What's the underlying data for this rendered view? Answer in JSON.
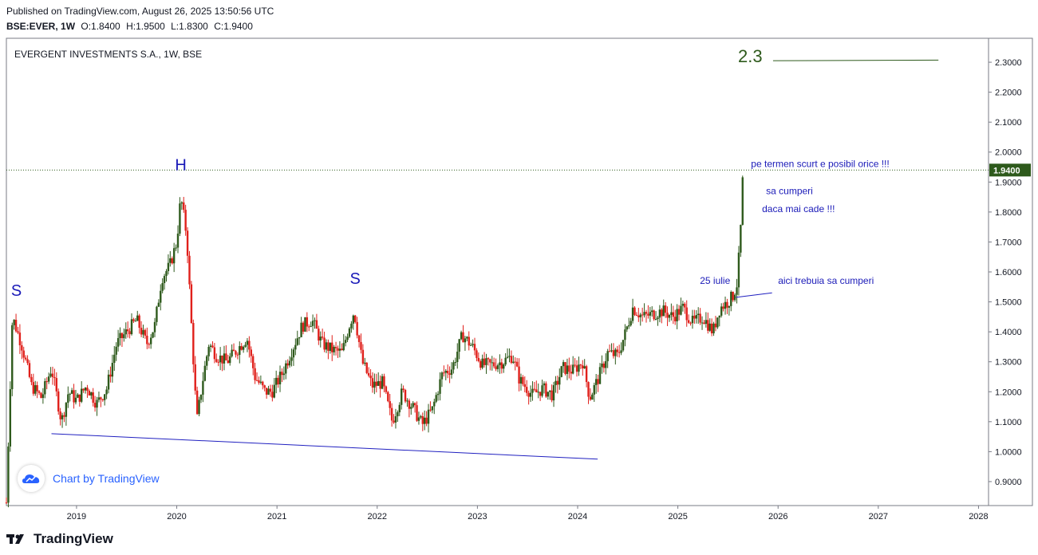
{
  "header": {
    "published": "Published on TradingView.com, August 26, 2025 13:50:56 UTC",
    "symbol": "BSE:EVER, 1W",
    "open": "O:1.8400",
    "high": "H:1.9500",
    "low": "L:1.8300",
    "close": "C:1.9400"
  },
  "footer": {
    "brand": "TradingView",
    "watermark": "Chart by TradingView"
  },
  "colors": {
    "up": "#2e5a1c",
    "down": "#e0201b",
    "trendline": "#2020c0",
    "target": "#2e5a1c",
    "price_line": "#2e5a1c",
    "annotation": "#1a1ab8"
  },
  "chart_data": {
    "type": "candlestick",
    "title": "EVERGENT INVESTMENTS S.A., 1W, BSE",
    "interval": "1W",
    "xlim": [
      2018.3,
      2028.1
    ],
    "ylim": [
      0.82,
      2.38
    ],
    "x_ticks": [
      "2019",
      "2020",
      "2021",
      "2022",
      "2023",
      "2024",
      "2025",
      "2026",
      "2027",
      "2028"
    ],
    "y_ticks": [
      "0.9000",
      "1.0000",
      "1.1000",
      "1.2000",
      "1.3000",
      "1.4000",
      "1.5000",
      "1.6000",
      "1.7000",
      "1.8000",
      "1.9000",
      "2.0000",
      "2.1000",
      "2.2000",
      "2.3000"
    ],
    "last_price": "1.9400",
    "series": [
      {
        "path": [
          [
            2018.3,
            0.83
          ],
          [
            2018.36,
            1.45
          ],
          [
            2018.45,
            1.36
          ],
          [
            2018.55,
            1.22
          ],
          [
            2018.65,
            1.18
          ],
          [
            2018.75,
            1.28
          ],
          [
            2018.85,
            1.1
          ],
          [
            2018.92,
            1.2
          ],
          [
            2019.0,
            1.17
          ],
          [
            2019.1,
            1.22
          ],
          [
            2019.2,
            1.16
          ],
          [
            2019.3,
            1.21
          ],
          [
            2019.4,
            1.36
          ],
          [
            2019.5,
            1.4
          ],
          [
            2019.6,
            1.44
          ],
          [
            2019.7,
            1.36
          ],
          [
            2019.78,
            1.42
          ],
          [
            2019.85,
            1.58
          ],
          [
            2019.93,
            1.62
          ],
          [
            2020.0,
            1.7
          ],
          [
            2020.04,
            1.85
          ],
          [
            2020.1,
            1.72
          ],
          [
            2020.15,
            1.4
          ],
          [
            2020.2,
            1.1
          ],
          [
            2020.25,
            1.22
          ],
          [
            2020.32,
            1.36
          ],
          [
            2020.4,
            1.32
          ],
          [
            2020.5,
            1.3
          ],
          [
            2020.6,
            1.34
          ],
          [
            2020.7,
            1.38
          ],
          [
            2020.78,
            1.25
          ],
          [
            2020.88,
            1.2
          ],
          [
            2020.95,
            1.2
          ],
          [
            2021.05,
            1.26
          ],
          [
            2021.15,
            1.34
          ],
          [
            2021.25,
            1.42
          ],
          [
            2021.35,
            1.44
          ],
          [
            2021.45,
            1.36
          ],
          [
            2021.55,
            1.34
          ],
          [
            2021.65,
            1.33
          ],
          [
            2021.72,
            1.42
          ],
          [
            2021.77,
            1.47
          ],
          [
            2021.85,
            1.3
          ],
          [
            2021.95,
            1.22
          ],
          [
            2022.05,
            1.23
          ],
          [
            2022.15,
            1.1
          ],
          [
            2022.25,
            1.2
          ],
          [
            2022.35,
            1.15
          ],
          [
            2022.45,
            1.09
          ],
          [
            2022.55,
            1.14
          ],
          [
            2022.65,
            1.26
          ],
          [
            2022.75,
            1.28
          ],
          [
            2022.85,
            1.39
          ],
          [
            2022.95,
            1.35
          ],
          [
            2023.05,
            1.29
          ],
          [
            2023.15,
            1.29
          ],
          [
            2023.25,
            1.3
          ],
          [
            2023.35,
            1.32
          ],
          [
            2023.42,
            1.24
          ],
          [
            2023.55,
            1.19
          ],
          [
            2023.65,
            1.21
          ],
          [
            2023.75,
            1.19
          ],
          [
            2023.85,
            1.28
          ],
          [
            2023.95,
            1.27
          ],
          [
            2024.05,
            1.3
          ],
          [
            2024.12,
            1.18
          ],
          [
            2024.2,
            1.24
          ],
          [
            2024.3,
            1.33
          ],
          [
            2024.4,
            1.32
          ],
          [
            2024.48,
            1.4
          ],
          [
            2024.55,
            1.48
          ],
          [
            2024.65,
            1.45
          ],
          [
            2024.75,
            1.46
          ],
          [
            2024.85,
            1.47
          ],
          [
            2024.95,
            1.45
          ],
          [
            2025.05,
            1.48
          ],
          [
            2025.15,
            1.43
          ],
          [
            2025.25,
            1.45
          ],
          [
            2025.35,
            1.4
          ],
          [
            2025.42,
            1.48
          ],
          [
            2025.5,
            1.5
          ],
          [
            2025.55,
            1.52
          ],
          [
            2025.59,
            1.56
          ],
          [
            2025.62,
            1.7
          ],
          [
            2025.64,
            1.84
          ],
          [
            2025.65,
            1.94
          ]
        ]
      }
    ],
    "annotations": {
      "labels": [
        {
          "text": "S",
          "x": 2018.4,
          "y": 1.52
        },
        {
          "text": "H",
          "x": 2020.04,
          "y": 1.94
        },
        {
          "text": "S",
          "x": 2021.78,
          "y": 1.56
        },
        {
          "text": "25 iulie",
          "x": 2025.22,
          "y": 1.56
        },
        {
          "text": "aici trebuia sa cumperi",
          "x": 2026.0,
          "y": 1.56
        },
        {
          "text": "pe termen scurt e posibil orice !!!",
          "x": 2025.73,
          "y": 1.95
        },
        {
          "text": "sa cumperi",
          "x": 2025.88,
          "y": 1.86
        },
        {
          "text": "daca mai cade !!!",
          "x": 2025.84,
          "y": 1.8
        },
        {
          "text": "2.3",
          "x": 2025.6,
          "y": 2.3
        }
      ],
      "trendline": {
        "from": [
          2018.75,
          1.06
        ],
        "to": [
          2024.2,
          0.975
        ]
      },
      "target_line": {
        "label": "2.3",
        "from": [
          2025.95,
          2.305
        ],
        "to": [
          2027.6,
          2.307
        ]
      },
      "pointer_line": {
        "from": [
          2025.58,
          1.515
        ],
        "to": [
          2025.94,
          1.53
        ]
      }
    }
  }
}
